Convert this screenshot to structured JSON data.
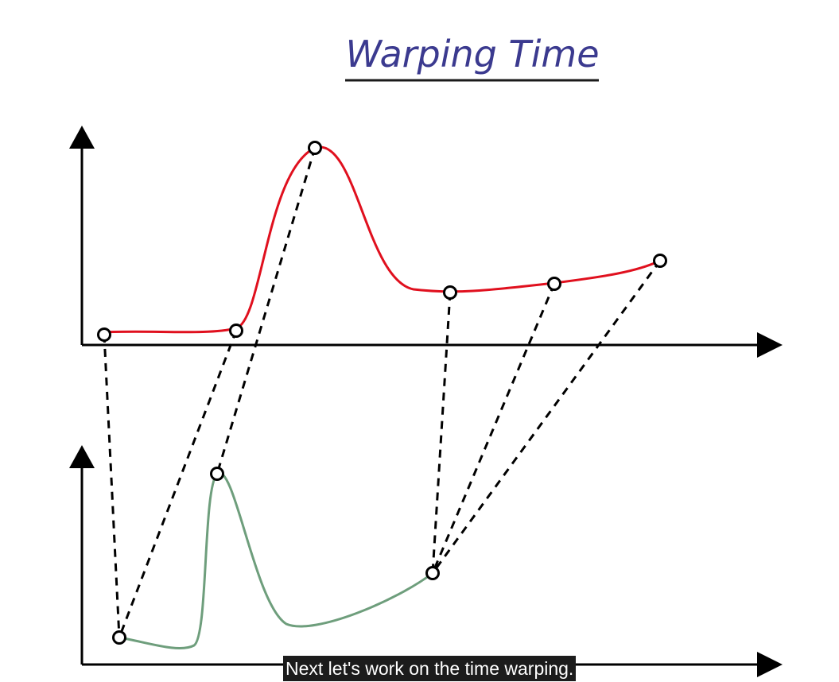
{
  "title": "Warping Time",
  "caption": "Next let's work on the time warping.",
  "colors": {
    "title": "#3b3a8f",
    "top_signal": "#e0101e",
    "bottom_signal": "#6e9e7c",
    "axes": "#000000",
    "caption_bg": "#1c1c1c",
    "caption_text": "#ffffff"
  },
  "diagram": {
    "top_signal": {
      "name": "",
      "marker_count": 6
    },
    "bottom_signal": {
      "name": "",
      "marker_count": 3
    },
    "correspondences": [
      {
        "top": 1,
        "bottom": 1
      },
      {
        "top": 2,
        "bottom": 1
      },
      {
        "top": 3,
        "bottom": 2
      },
      {
        "top": 4,
        "bottom": 3
      },
      {
        "top": 5,
        "bottom": 3
      },
      {
        "top": 6,
        "bottom": 3
      }
    ]
  }
}
